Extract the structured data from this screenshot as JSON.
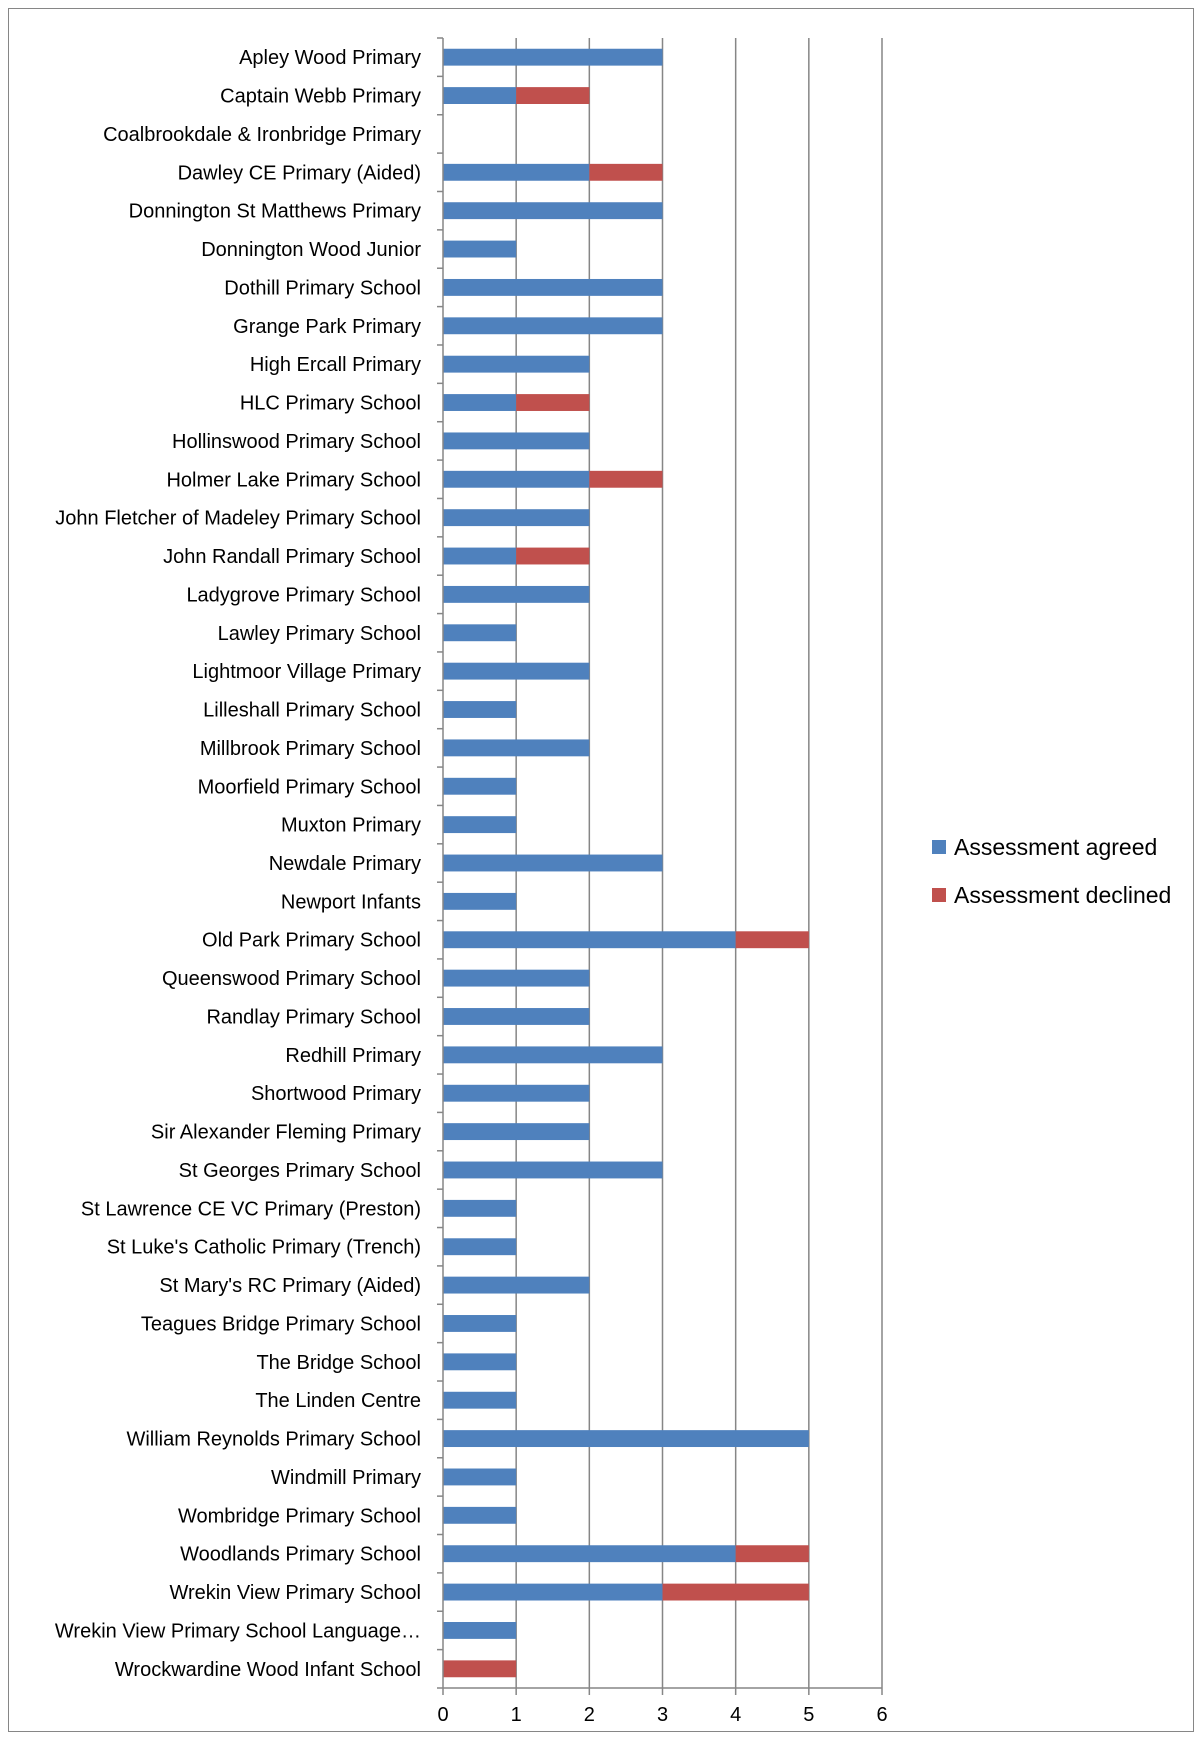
{
  "chart_data": {
    "type": "bar",
    "orientation": "horizontal",
    "stacked": true,
    "categories": [
      "Apley Wood Primary",
      "Captain Webb Primary",
      "Coalbrookdale & Ironbridge Primary",
      "Dawley CE Primary (Aided)",
      "Donnington St Matthews Primary",
      "Donnington Wood Junior",
      "Dothill Primary School",
      "Grange Park Primary",
      "High Ercall Primary",
      "HLC Primary School",
      "Hollinswood Primary School",
      "Holmer Lake Primary School",
      "John Fletcher of Madeley Primary School",
      "John Randall Primary School",
      "Ladygrove Primary School",
      "Lawley Primary School",
      "Lightmoor Village Primary",
      "Lilleshall Primary School",
      "Millbrook Primary School",
      "Moorfield Primary School",
      "Muxton Primary",
      "Newdale Primary",
      "Newport Infants",
      "Old Park Primary School",
      "Queenswood Primary School",
      "Randlay Primary School",
      "Redhill Primary",
      "Shortwood Primary",
      "Sir Alexander Fleming Primary",
      "St Georges Primary School",
      "St Lawrence CE VC Primary (Preston)",
      "St Luke's Catholic Primary (Trench)",
      "St Mary's RC Primary (Aided)",
      "Teagues Bridge Primary School",
      "The Bridge School",
      "The Linden Centre",
      "William Reynolds Primary School",
      "Windmill Primary",
      "Wombridge Primary School",
      "Woodlands Primary School",
      "Wrekin View Primary School",
      "Wrekin View Primary School Language…",
      "Wrockwardine Wood Infant School"
    ],
    "series": [
      {
        "name": "Assessment agreed",
        "color": "#4F81BD",
        "values": [
          3,
          1,
          0,
          2,
          3,
          1,
          3,
          3,
          2,
          1,
          2,
          2,
          2,
          1,
          2,
          1,
          2,
          1,
          2,
          1,
          1,
          3,
          1,
          4,
          2,
          2,
          3,
          2,
          2,
          3,
          1,
          1,
          2,
          1,
          1,
          1,
          5,
          1,
          1,
          4,
          3,
          1,
          0
        ]
      },
      {
        "name": "Assessment declined",
        "color": "#C0504D",
        "values": [
          0,
          1,
          0,
          1,
          0,
          0,
          0,
          0,
          0,
          1,
          0,
          1,
          0,
          1,
          0,
          0,
          0,
          0,
          0,
          0,
          0,
          0,
          0,
          1,
          0,
          0,
          0,
          0,
          0,
          0,
          0,
          0,
          0,
          0,
          0,
          0,
          0,
          0,
          0,
          1,
          2,
          0,
          1
        ]
      }
    ],
    "xlim": [
      0,
      6
    ],
    "xticks": [
      "0",
      "1",
      "2",
      "3",
      "4",
      "5",
      "6"
    ],
    "grid": "vertical",
    "legend": "right",
    "title": "",
    "xlabel": "",
    "ylabel": ""
  }
}
